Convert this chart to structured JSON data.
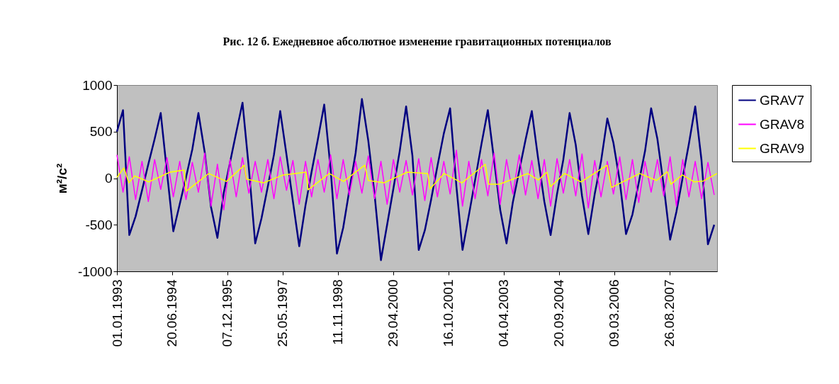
{
  "chart_data": {
    "type": "line",
    "title": "Рис. 12 б. Ежедневное абсолютное изменение гравитационных потенциалов",
    "ylabel": "м²/с²",
    "legend": "right",
    "xlim": [
      "1993-01-01",
      "2008-11-29"
    ],
    "xticks": [
      {
        "value": "1993-01-01",
        "label": "01.01.1993"
      },
      {
        "value": "1994-06-20",
        "label": "20.06.1994"
      },
      {
        "value": "1995-12-07",
        "label": "07.12.1995"
      },
      {
        "value": "1997-05-25",
        "label": "25.05.1997"
      },
      {
        "value": "1998-11-11",
        "label": "11.11.1998"
      },
      {
        "value": "2000-04-29",
        "label": "29.04.2000"
      },
      {
        "value": "2001-10-16",
        "label": "16.10.2001"
      },
      {
        "value": "2003-04-04",
        "label": "04.04.2003"
      },
      {
        "value": "2004-09-20",
        "label": "20.09.2004"
      },
      {
        "value": "2006-03-09",
        "label": "09.03.2006"
      },
      {
        "value": "2007-08-26",
        "label": "26.08.2007"
      }
    ],
    "ylim": [
      -1000,
      1000
    ],
    "yticks": [
      -1000,
      -500,
      0,
      500,
      1000
    ],
    "x": [
      "1993-01",
      "1993-03",
      "1993-05",
      "1993-07",
      "1993-09",
      "1993-11",
      "1994-01",
      "1994-03",
      "1994-05",
      "1994-07",
      "1994-09",
      "1994-11",
      "1995-01",
      "1995-03",
      "1995-05",
      "1995-07",
      "1995-09",
      "1995-11",
      "1996-01",
      "1996-03",
      "1996-05",
      "1996-07",
      "1996-09",
      "1996-11",
      "1997-01",
      "1997-03",
      "1997-05",
      "1997-07",
      "1997-09",
      "1997-11",
      "1998-01",
      "1998-03",
      "1998-05",
      "1998-07",
      "1998-09",
      "1998-11",
      "1999-01",
      "1999-03",
      "1999-05",
      "1999-07",
      "1999-09",
      "1999-11",
      "2000-01",
      "2000-03",
      "2000-05",
      "2000-07",
      "2000-09",
      "2000-11",
      "2001-01",
      "2001-03",
      "2001-05",
      "2001-07",
      "2001-09",
      "2001-11",
      "2002-01",
      "2002-03",
      "2002-05",
      "2002-07",
      "2002-09",
      "2002-11",
      "2003-01",
      "2003-03",
      "2003-05",
      "2003-07",
      "2003-09",
      "2003-11",
      "2004-01",
      "2004-03",
      "2004-05",
      "2004-07",
      "2004-09",
      "2004-11",
      "2005-01",
      "2005-03",
      "2005-05",
      "2005-07",
      "2005-09",
      "2005-11",
      "2006-01",
      "2006-03",
      "2006-05",
      "2006-07",
      "2006-09",
      "2006-11",
      "2007-01",
      "2007-03",
      "2007-05",
      "2007-07",
      "2007-09",
      "2007-11",
      "2008-01",
      "2008-03",
      "2008-05",
      "2008-07",
      "2008-09",
      "2008-11"
    ],
    "series": [
      {
        "name": "GRAV7",
        "color": "#000080",
        "values": [
          500,
          730,
          -610,
          -410,
          -130,
          150,
          420,
          700,
          60,
          -570,
          -280,
          10,
          310,
          700,
          280,
          -310,
          -640,
          -160,
          170,
          490,
          810,
          110,
          -700,
          -430,
          -90,
          250,
          720,
          250,
          -250,
          -730,
          -290,
          70,
          420,
          790,
          100,
          -810,
          -530,
          -130,
          270,
          850,
          400,
          -180,
          -880,
          -500,
          -110,
          290,
          770,
          240,
          -770,
          -560,
          -230,
          130,
          480,
          750,
          -90,
          -770,
          -400,
          -20,
          370,
          730,
          190,
          -340,
          -700,
          -260,
          80,
          410,
          720,
          220,
          -250,
          -610,
          -170,
          200,
          700,
          360,
          -190,
          -600,
          -170,
          180,
          640,
          380,
          -30,
          -600,
          -390,
          -50,
          290,
          750,
          420,
          -80,
          -660,
          -360,
          10,
          370,
          770,
          190,
          -710,
          -500
        ]
      },
      {
        "name": "GRAV8",
        "color": "#ff00ff",
        "values": [
          250,
          -150,
          230,
          -230,
          180,
          -250,
          200,
          -120,
          220,
          -200,
          180,
          -230,
          170,
          -150,
          270,
          -300,
          150,
          -340,
          200,
          -200,
          220,
          -160,
          180,
          -150,
          200,
          -220,
          230,
          -130,
          190,
          -280,
          180,
          -200,
          200,
          -150,
          250,
          -220,
          200,
          -180,
          180,
          -160,
          240,
          -220,
          180,
          -280,
          200,
          -150,
          190,
          -180,
          210,
          -240,
          220,
          -200,
          180,
          -170,
          300,
          -300,
          180,
          -220,
          200,
          -190,
          270,
          -280,
          200,
          -170,
          250,
          -180,
          190,
          -220,
          200,
          -300,
          210,
          -160,
          200,
          -190,
          260,
          -320,
          190,
          -200,
          180,
          -170,
          230,
          -230,
          200,
          -260,
          180,
          -150,
          200,
          -190,
          230,
          -300,
          200,
          -200,
          180,
          -220,
          170,
          -180
        ]
      },
      {
        "name": "GRAV9",
        "color": "#ffff00",
        "x": [
          "1993-01-01",
          "1993-03-10",
          "1993-04-27",
          "1993-06-21",
          "1993-11-05",
          "1994-05-30",
          "1994-10-14",
          "1994-11-03",
          "1995-06-10",
          "1995-11-28",
          "1996-05-18",
          "1996-06-08",
          "1996-11-20",
          "1997-05-31",
          "1998-01-06",
          "1998-01-26",
          "1998-08-19",
          "1999-01-04",
          "1999-07-28",
          "1999-09-01",
          "2000-01-30",
          "2000-09-12",
          "2001-03-30",
          "2001-04-20",
          "2001-09-04",
          "2002-02-23",
          "2002-10-07",
          "2002-11-10",
          "2003-02-21",
          "2003-11-22",
          "2004-03-05",
          "2004-05-26",
          "2004-06-30",
          "2004-11-14",
          "2005-04-21",
          "2005-12-30",
          "2006-02-10",
          "2006-11-10",
          "2007-04-23",
          "2007-08-04",
          "2007-09-08",
          "2007-12-28",
          "2008-04-22",
          "2008-07-20",
          "2008-11-28"
        ],
        "values": [
          10,
          110,
          -50,
          25,
          -40,
          65,
          87,
          -140,
          50,
          -35,
          140,
          -10,
          -50,
          35,
          65,
          -125,
          50,
          -35,
          140,
          -25,
          -50,
          65,
          50,
          -115,
          50,
          -50,
          150,
          -65,
          -65,
          50,
          -20,
          65,
          -90,
          50,
          -40,
          140,
          -100,
          50,
          -25,
          70,
          -65,
          35,
          -40,
          -30,
          50
        ]
      }
    ]
  }
}
